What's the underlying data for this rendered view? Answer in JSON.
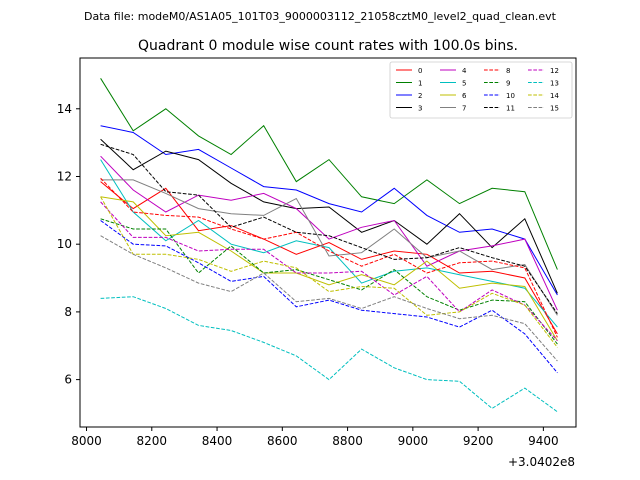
{
  "chart_data": {
    "type": "line",
    "suptitle": "Data file: modeM0/AS1A05_101T03_9000003112_21058cztM0_level2_quad_clean.evt",
    "title": "Quadrant 0 module wise count rates with 100.0s bins.",
    "xlabel": "",
    "ylabel": "",
    "x_offset_label": "+3.0402e8",
    "x_offset": 304020000,
    "xlim": [
      7980,
      9500
    ],
    "ylim": [
      4.6,
      15.5
    ],
    "xticks": [
      8000,
      8200,
      8400,
      8600,
      8800,
      9000,
      9200,
      9400
    ],
    "yticks": [
      6,
      8,
      10,
      12,
      14
    ],
    "grid": false,
    "legend_position": "top-right",
    "x": [
      8043,
      8143,
      8243,
      8343,
      8443,
      8543,
      8643,
      8743,
      8843,
      8943,
      9043,
      9143,
      9243,
      9343,
      9443
    ],
    "series": [
      {
        "name": "0",
        "color": "#ff0000",
        "dash": "solid",
        "values": [
          11.85,
          11.05,
          11.65,
          10.4,
          10.55,
          10.15,
          9.7,
          10.05,
          9.55,
          9.8,
          9.7,
          9.15,
          9.2,
          9.0,
          7.35
        ]
      },
      {
        "name": "1",
        "color": "#008000",
        "dash": "solid",
        "values": [
          14.9,
          13.35,
          14.0,
          13.2,
          12.65,
          13.5,
          11.85,
          12.5,
          11.4,
          11.2,
          11.9,
          11.2,
          11.65,
          11.55,
          9.25
        ]
      },
      {
        "name": "2",
        "color": "#0000ff",
        "dash": "solid",
        "values": [
          13.5,
          13.3,
          12.65,
          12.8,
          12.25,
          11.7,
          11.6,
          11.2,
          10.95,
          11.65,
          10.85,
          10.35,
          10.45,
          10.15,
          8.5
        ]
      },
      {
        "name": "3",
        "color": "#000000",
        "dash": "solid",
        "values": [
          13.1,
          12.2,
          12.75,
          12.5,
          11.8,
          11.25,
          11.05,
          11.1,
          10.35,
          10.7,
          10.0,
          10.9,
          9.9,
          10.75,
          8.55
        ]
      },
      {
        "name": "4",
        "color": "#bf00bf",
        "dash": "solid",
        "values": [
          12.6,
          11.6,
          10.95,
          11.45,
          11.3,
          11.5,
          11.05,
          10.15,
          10.5,
          10.7,
          9.35,
          9.8,
          9.95,
          10.15,
          8.05
        ]
      },
      {
        "name": "5",
        "color": "#00bfbf",
        "dash": "solid",
        "values": [
          12.5,
          10.95,
          10.1,
          10.7,
          10.0,
          9.75,
          10.1,
          9.9,
          8.85,
          9.2,
          9.3,
          9.1,
          8.9,
          8.7,
          7.55
        ]
      },
      {
        "name": "6",
        "color": "#bfbf00",
        "dash": "solid",
        "values": [
          11.4,
          11.25,
          10.25,
          10.35,
          9.8,
          9.15,
          9.15,
          8.8,
          9.1,
          8.8,
          9.5,
          8.7,
          8.85,
          8.75,
          7.15
        ]
      },
      {
        "name": "7",
        "color": "#808080",
        "dash": "solid",
        "values": [
          11.9,
          11.9,
          11.5,
          11.05,
          10.9,
          10.85,
          11.35,
          9.65,
          9.75,
          10.45,
          9.6,
          9.8,
          9.25,
          9.4,
          7.9
        ]
      },
      {
        "name": "8",
        "color": "#ff0000",
        "dash": "dashed",
        "values": [
          11.95,
          10.95,
          10.85,
          10.8,
          10.45,
          10.15,
          10.35,
          9.8,
          9.35,
          9.7,
          9.15,
          9.45,
          9.5,
          9.3,
          7.25
        ]
      },
      {
        "name": "9",
        "color": "#008000",
        "dash": "dashed",
        "values": [
          10.75,
          10.45,
          10.45,
          9.15,
          9.95,
          9.15,
          9.25,
          8.95,
          8.65,
          9.25,
          8.45,
          8.05,
          8.35,
          8.3,
          7.05
        ]
      },
      {
        "name": "10",
        "color": "#0000ff",
        "dash": "dashed",
        "values": [
          10.7,
          10.0,
          9.95,
          9.45,
          8.9,
          9.05,
          8.15,
          8.35,
          8.05,
          7.95,
          7.85,
          7.55,
          8.05,
          7.35,
          6.2
        ]
      },
      {
        "name": "11",
        "color": "#000000",
        "dash": "dashed",
        "values": [
          12.95,
          12.65,
          11.55,
          11.45,
          10.5,
          10.8,
          10.35,
          10.25,
          9.9,
          9.55,
          9.6,
          9.9,
          9.6,
          9.35,
          7.95
        ]
      },
      {
        "name": "12",
        "color": "#bf00bf",
        "dash": "dashed",
        "values": [
          11.25,
          10.2,
          10.2,
          9.8,
          9.85,
          9.85,
          9.15,
          9.15,
          9.2,
          8.5,
          9.05,
          8.0,
          8.65,
          8.2,
          7.15
        ]
      },
      {
        "name": "13",
        "color": "#00bfbf",
        "dash": "dashed",
        "values": [
          8.4,
          8.45,
          8.1,
          7.6,
          7.45,
          7.1,
          6.7,
          6.0,
          6.9,
          6.35,
          6.0,
          5.95,
          5.15,
          5.75,
          5.05
        ]
      },
      {
        "name": "14",
        "color": "#bfbf00",
        "dash": "dashed",
        "values": [
          11.4,
          9.7,
          9.7,
          9.55,
          9.2,
          9.5,
          9.3,
          8.6,
          8.75,
          8.7,
          7.9,
          8.0,
          8.55,
          8.2,
          6.95
        ]
      },
      {
        "name": "15",
        "color": "#808080",
        "dash": "dashed",
        "values": [
          10.25,
          9.7,
          9.3,
          8.85,
          8.6,
          9.15,
          8.3,
          8.4,
          8.1,
          8.45,
          8.1,
          7.8,
          7.9,
          7.65,
          6.55
        ]
      }
    ]
  }
}
